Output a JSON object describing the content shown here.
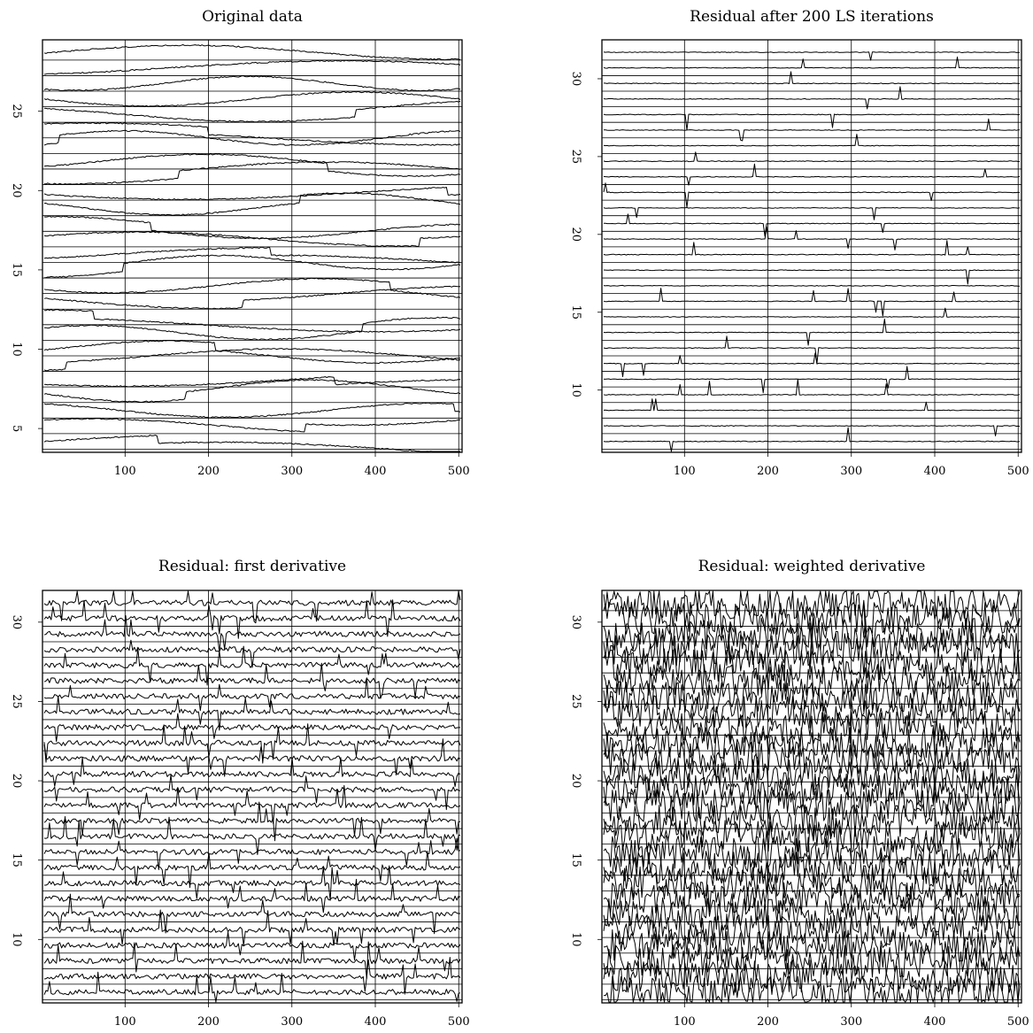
{
  "chart_data": [
    {
      "type": "line",
      "title": "Original data",
      "xlabel": "",
      "ylabel": "",
      "xlim": [
        1,
        504
      ],
      "ylim": [
        3.5,
        29.5
      ],
      "x_ticks": [
        100,
        200,
        300,
        400,
        500
      ],
      "y_ticks": [
        5,
        10,
        15,
        20,
        25
      ],
      "grid": true,
      "trace_count": 26,
      "style": "smooth"
    },
    {
      "type": "line",
      "title": "Residual after 200 LS iterations",
      "xlabel": "",
      "ylabel": "",
      "xlim": [
        1,
        504
      ],
      "ylim": [
        6,
        32.5
      ],
      "x_ticks": [
        100,
        200,
        300,
        400,
        500
      ],
      "y_ticks": [
        10,
        15,
        20,
        25,
        30
      ],
      "grid": true,
      "trace_count": 26,
      "style": "spikes"
    },
    {
      "type": "line",
      "title": "Residual: first derivative",
      "xlabel": "",
      "ylabel": "",
      "xlim": [
        1,
        504
      ],
      "ylim": [
        6,
        32
      ],
      "x_ticks": [
        100,
        200,
        300,
        400,
        500
      ],
      "y_ticks": [
        10,
        15,
        20,
        25,
        30
      ],
      "grid": true,
      "trace_count": 26,
      "style": "noisy"
    },
    {
      "type": "line",
      "title": "Residual: weighted derivative",
      "xlabel": "",
      "ylabel": "",
      "xlim": [
        1,
        504
      ],
      "ylim": [
        6,
        32
      ],
      "x_ticks": [
        100,
        200,
        300,
        400,
        500
      ],
      "y_ticks": [
        10,
        15,
        20,
        25,
        30
      ],
      "grid": true,
      "trace_count": 26,
      "style": "dense-noise"
    }
  ]
}
